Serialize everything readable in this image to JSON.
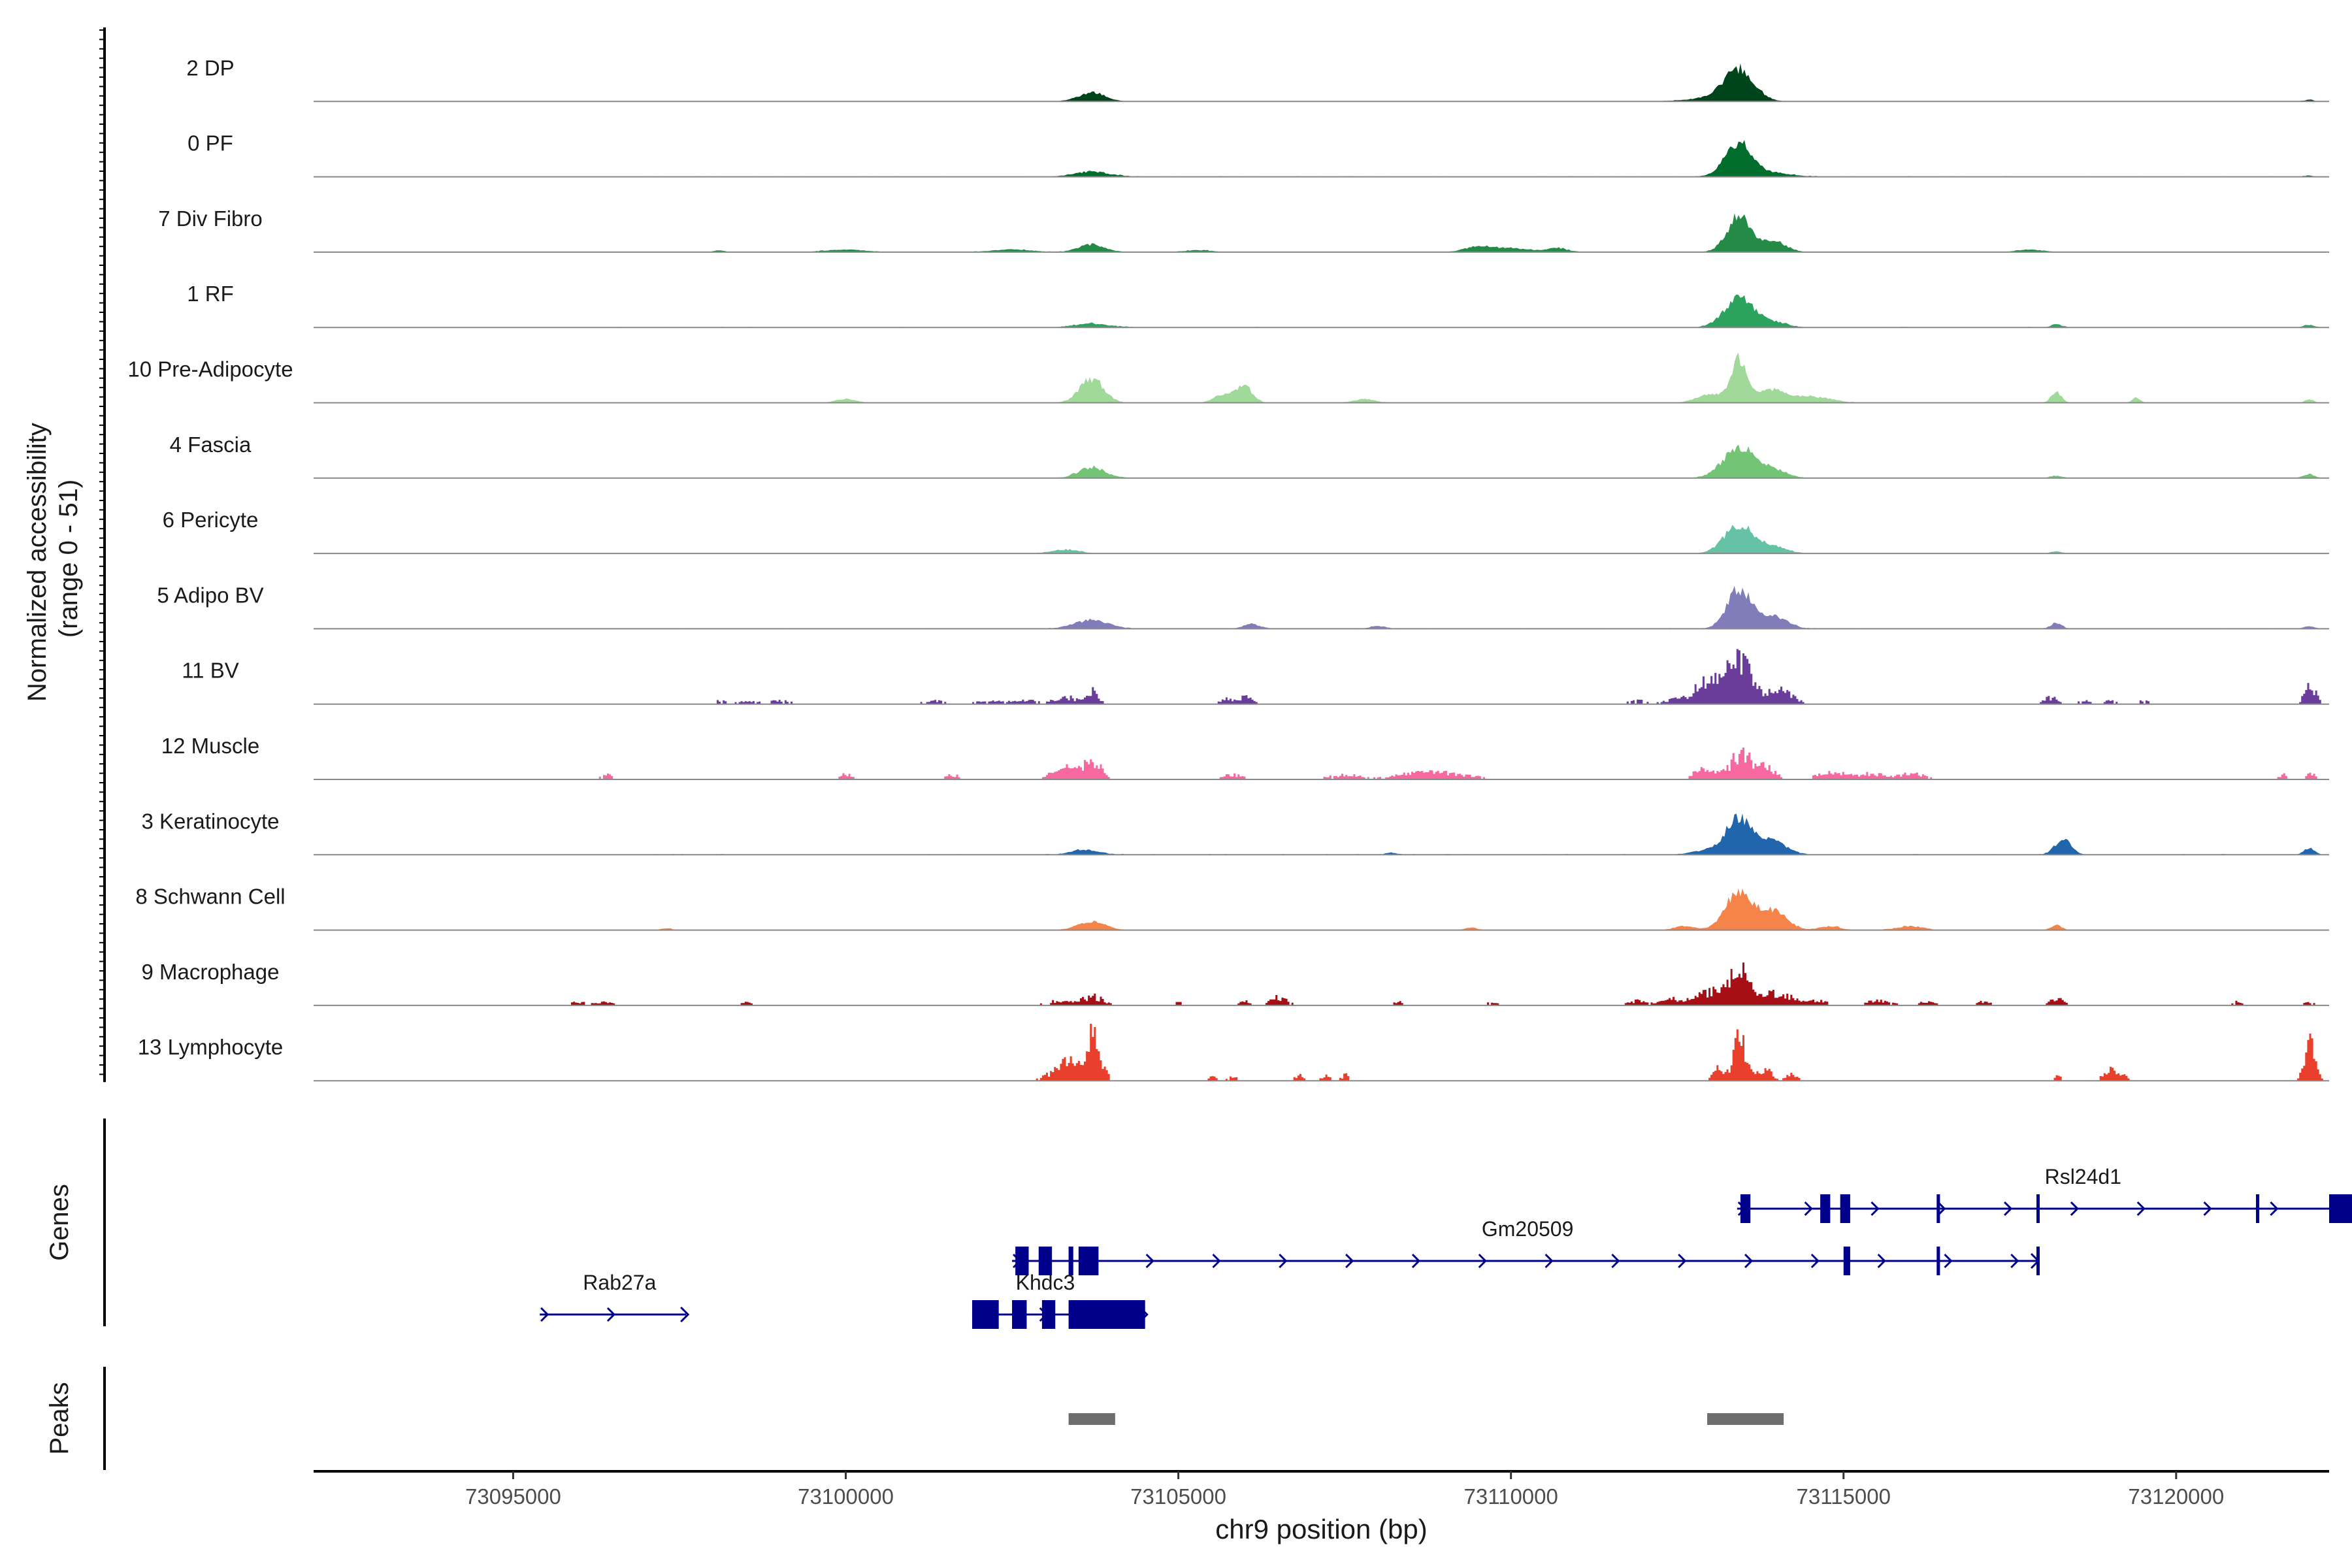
{
  "chart_data": {
    "type": "area",
    "title": "",
    "xlabel": "chr9 position (bp)",
    "ylabel": "Normalized accessibility\n(range 0 - 51)",
    "xlim": [
      73092000,
      73122300
    ],
    "x_ticks": [
      73095000,
      73100000,
      73105000,
      73110000,
      73115000,
      73120000
    ],
    "x_tick_labels": [
      "73095000",
      "73100000",
      "73105000",
      "73110000",
      "73115000",
      "73120000"
    ],
    "ylim": [
      0,
      51
    ],
    "section_labels": {
      "genes": "Genes",
      "peaks": "Peaks"
    },
    "tracks": [
      {
        "name": "2 DP",
        "color": "#00441b",
        "style": "smooth",
        "noise": [
          [
            73096000,
            73122000,
            0.4
          ]
        ],
        "peaks": [
          [
            73113430,
            48,
            220
          ],
          [
            73103700,
            14,
            200
          ],
          [
            73113100,
            6,
            400
          ],
          [
            73122000,
            3,
            60
          ]
        ]
      },
      {
        "name": "0 PF",
        "color": "#006d2c",
        "style": "smooth",
        "noise": [
          [
            73097000,
            73122000,
            0.5
          ]
        ],
        "peaks": [
          [
            73113420,
            52,
            200
          ],
          [
            73103700,
            8,
            260
          ],
          [
            73113900,
            6,
            300
          ],
          [
            73122000,
            2,
            60
          ]
        ]
      },
      {
        "name": "7 Div Fibro",
        "color": "#238b45",
        "style": "smooth",
        "noise": [
          [
            73098000,
            73116000,
            0.3
          ]
        ],
        "peaks": [
          [
            73113430,
            56,
            180
          ],
          [
            73103700,
            12,
            200
          ],
          [
            73113950,
            18,
            180
          ],
          [
            73109500,
            8,
            200
          ],
          [
            73110000,
            6,
            300
          ],
          [
            73110700,
            6,
            150
          ],
          [
            73102500,
            4,
            300
          ],
          [
            73100000,
            4,
            300
          ],
          [
            73117800,
            4,
            200
          ],
          [
            73098100,
            3,
            80
          ],
          [
            73105300,
            3,
            200
          ]
        ]
      },
      {
        "name": "1 RF",
        "color": "#2ca25f",
        "style": "smooth",
        "noise": [
          [
            73094500,
            73122000,
            0.5
          ]
        ],
        "peaks": [
          [
            73113430,
            46,
            220
          ],
          [
            73103700,
            6,
            250
          ],
          [
            73113950,
            8,
            200
          ],
          [
            73118200,
            5,
            80
          ],
          [
            73122000,
            4,
            80
          ]
        ]
      },
      {
        "name": "10 Pre-Adipocyte",
        "color": "#a1d99b",
        "style": "smooth",
        "noise": [
          [
            73099500,
            73118000,
            0.3
          ]
        ],
        "peaks": [
          [
            73113430,
            68,
            120
          ],
          [
            73103700,
            38,
            180
          ],
          [
            73106000,
            24,
            120
          ],
          [
            73105700,
            14,
            150
          ],
          [
            73113900,
            20,
            200
          ],
          [
            73113000,
            14,
            200
          ],
          [
            73114500,
            10,
            300
          ],
          [
            73118200,
            16,
            80
          ],
          [
            73119400,
            8,
            60
          ],
          [
            73100000,
            6,
            150
          ],
          [
            73107800,
            6,
            150
          ],
          [
            73122000,
            6,
            60
          ]
        ]
      },
      {
        "name": "4 Fascia",
        "color": "#74c476",
        "style": "smooth",
        "noise": [
          [
            73094500,
            73122000,
            0.4
          ]
        ],
        "peaks": [
          [
            73113430,
            48,
            240
          ],
          [
            73103700,
            17,
            200
          ],
          [
            73113950,
            12,
            200
          ],
          [
            73118200,
            4,
            80
          ],
          [
            73122000,
            6,
            80
          ]
        ]
      },
      {
        "name": "6 Pericyte",
        "color": "#66c2a4",
        "style": "smooth",
        "noise": [
          [
            73094500,
            73121000,
            0.4
          ]
        ],
        "peaks": [
          [
            73113430,
            45,
            220
          ],
          [
            73103300,
            6,
            200
          ],
          [
            73113950,
            10,
            200
          ],
          [
            73118200,
            3,
            80
          ]
        ]
      },
      {
        "name": "5 Adipo BV",
        "color": "#807dba",
        "style": "smooth",
        "noise": [
          [
            73094500,
            73122000,
            0.5
          ]
        ],
        "peaks": [
          [
            73113430,
            62,
            180
          ],
          [
            73103700,
            14,
            250
          ],
          [
            73113950,
            20,
            200
          ],
          [
            73106100,
            7,
            120
          ],
          [
            73108000,
            4,
            120
          ],
          [
            73118200,
            9,
            80
          ],
          [
            73122000,
            4,
            80
          ]
        ]
      },
      {
        "name": "11 BV",
        "color": "#6a3d9a",
        "style": "bars",
        "noise": [],
        "peaks": [
          [
            73113430,
            70,
            170
          ],
          [
            73113000,
            40,
            250
          ],
          [
            73114000,
            24,
            200
          ],
          [
            73103700,
            26,
            80
          ],
          [
            73103300,
            12,
            200
          ],
          [
            73102200,
            6,
            250
          ],
          [
            73102700,
            6,
            150
          ],
          [
            73105700,
            10,
            100
          ],
          [
            73106000,
            14,
            100
          ],
          [
            73098100,
            6,
            80
          ],
          [
            73098500,
            6,
            150
          ],
          [
            73099000,
            6,
            150
          ],
          [
            73101300,
            6,
            150
          ],
          [
            73111900,
            6,
            150
          ],
          [
            73112400,
            6,
            150
          ],
          [
            73118100,
            12,
            100
          ],
          [
            73118600,
            6,
            80
          ],
          [
            73119000,
            6,
            100
          ],
          [
            73122000,
            34,
            80
          ],
          [
            73119500,
            6,
            80
          ]
        ]
      },
      {
        "name": "12 Muscle",
        "color": "#f768a1",
        "style": "bars",
        "noise": [],
        "peaks": [
          [
            73113430,
            48,
            150
          ],
          [
            73103700,
            32,
            120
          ],
          [
            73103300,
            20,
            200
          ],
          [
            73112900,
            20,
            150
          ],
          [
            73113800,
            24,
            150
          ],
          [
            73096400,
            8,
            100
          ],
          [
            73100000,
            10,
            80
          ],
          [
            73101600,
            8,
            100
          ],
          [
            73105800,
            8,
            150
          ],
          [
            73107500,
            8,
            250
          ],
          [
            73108500,
            8,
            300
          ],
          [
            73109000,
            10,
            400
          ],
          [
            73114800,
            14,
            200
          ],
          [
            73115400,
            10,
            200
          ],
          [
            73116000,
            10,
            200
          ],
          [
            73121600,
            8,
            80
          ],
          [
            73122000,
            10,
            80
          ]
        ]
      },
      {
        "name": "3 Keratinocyte",
        "color": "#2166ac",
        "style": "smooth",
        "noise": [
          [
            73094500,
            73122000,
            0.6
          ]
        ],
        "peaks": [
          [
            73113430,
            58,
            200
          ],
          [
            73113950,
            20,
            200
          ],
          [
            73103600,
            8,
            200
          ],
          [
            73118300,
            24,
            120
          ],
          [
            73112900,
            6,
            200
          ],
          [
            73122000,
            10,
            80
          ],
          [
            73108200,
            3,
            80
          ]
        ]
      },
      {
        "name": "8 Schwann Cell",
        "color": "#f4844a",
        "style": "smooth",
        "noise": [
          [
            73097000,
            73119500,
            0.4
          ]
        ],
        "peaks": [
          [
            73113430,
            62,
            200
          ],
          [
            73113950,
            30,
            200
          ],
          [
            73103700,
            14,
            200
          ],
          [
            73114800,
            6,
            150
          ],
          [
            73116000,
            6,
            200
          ],
          [
            73118200,
            8,
            80
          ],
          [
            73112600,
            6,
            150
          ],
          [
            73109400,
            4,
            80
          ],
          [
            73097300,
            3,
            80
          ]
        ]
      },
      {
        "name": "9 Macrophage",
        "color": "#a50f15",
        "style": "bars",
        "noise": [],
        "peaks": [
          [
            73113430,
            56,
            150
          ],
          [
            73113000,
            24,
            250
          ],
          [
            73114000,
            24,
            200
          ],
          [
            73103700,
            16,
            150
          ],
          [
            73103200,
            8,
            200
          ],
          [
            73106500,
            14,
            120
          ],
          [
            73106000,
            8,
            100
          ],
          [
            73105000,
            6,
            80
          ],
          [
            73096000,
            6,
            150
          ],
          [
            73096400,
            6,
            100
          ],
          [
            73098500,
            6,
            80
          ],
          [
            73111900,
            8,
            150
          ],
          [
            73112400,
            10,
            150
          ],
          [
            73114600,
            8,
            150
          ],
          [
            73115500,
            8,
            200
          ],
          [
            73116200,
            6,
            150
          ],
          [
            73117100,
            8,
            100
          ],
          [
            73118200,
            14,
            100
          ],
          [
            73120900,
            6,
            80
          ],
          [
            73122000,
            6,
            80
          ],
          [
            73108300,
            6,
            80
          ],
          [
            73109700,
            6,
            80
          ]
        ]
      },
      {
        "name": "13 Lymphocyte",
        "color": "#e8402d",
        "style": "bars",
        "noise": [],
        "peaks": [
          [
            73103700,
            72,
            120
          ],
          [
            73103300,
            32,
            200
          ],
          [
            73113430,
            84,
            100
          ],
          [
            73113100,
            20,
            80
          ],
          [
            73113800,
            20,
            100
          ],
          [
            73114200,
            12,
            80
          ],
          [
            73105500,
            8,
            60
          ],
          [
            73105800,
            8,
            60
          ],
          [
            73106800,
            10,
            60
          ],
          [
            73107200,
            10,
            60
          ],
          [
            73107500,
            10,
            60
          ],
          [
            73118200,
            10,
            60
          ],
          [
            73119000,
            20,
            100
          ],
          [
            73122000,
            64,
            80
          ],
          [
            73119200,
            8,
            60
          ]
        ]
      }
    ],
    "genes": [
      {
        "name": "Rab27a",
        "row": 2,
        "start": 73095400,
        "end": 73097600,
        "exons": [],
        "label_x": 73096600
      },
      {
        "name": "Khdc3",
        "row": 2,
        "start": 73101900,
        "end": 73104500,
        "exons": [
          [
            73101900,
            73102300
          ],
          [
            73102500,
            73102720
          ],
          [
            73102950,
            73103150
          ],
          [
            73103350,
            73104500
          ]
        ],
        "label_x": 73103000
      },
      {
        "name": "Gm20509",
        "row": 1,
        "start": 73102500,
        "end": 73117900,
        "exons": [
          [
            73102550,
            73102750
          ],
          [
            73102900,
            73103100
          ],
          [
            73103350,
            73103420
          ],
          [
            73103500,
            73103800
          ],
          [
            73115000,
            73115100
          ],
          [
            73116400,
            73116450
          ],
          [
            73117900,
            73117920
          ]
        ],
        "label_x": 73110250
      },
      {
        "name": "Rsl24d1",
        "row": 0,
        "start": 73113400,
        "end": 73122900,
        "exons": [
          [
            73113450,
            73113600
          ],
          [
            73114650,
            73114800
          ],
          [
            73114950,
            73115100
          ],
          [
            73116400,
            73116450
          ],
          [
            73117900,
            73117920
          ],
          [
            73121200,
            73121250
          ],
          [
            73122300,
            73122700
          ]
        ],
        "label_x": 73118600
      }
    ],
    "peaks_track": [
      {
        "start": 73103350,
        "end": 73104050
      },
      {
        "start": 73112950,
        "end": 73114100
      }
    ]
  }
}
